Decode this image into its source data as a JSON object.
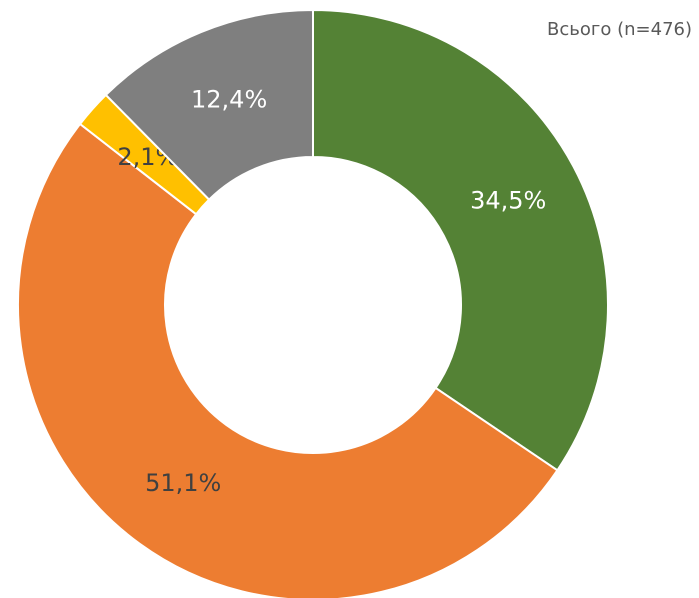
{
  "chart_data": {
    "type": "donut",
    "title": "Всього (n=476)",
    "series": [
      {
        "color": "#548235",
        "values": [
          34.5
        ],
        "value_labels": [
          "34,5%"
        ],
        "label_color": "#ffffff"
      },
      {
        "color": "#ed7d31",
        "values": [
          51.1
        ],
        "value_labels": [
          "51,1%"
        ],
        "label_color": "#404040"
      },
      {
        "color": "#ffc000",
        "values": [
          2.1
        ],
        "value_labels": [
          "2,1%"
        ],
        "label_color": "#404040"
      },
      {
        "color": "#7f7f7f",
        "values": [
          12.4
        ],
        "value_labels": [
          "12,4%"
        ],
        "label_color": "#ffffff"
      }
    ]
  }
}
